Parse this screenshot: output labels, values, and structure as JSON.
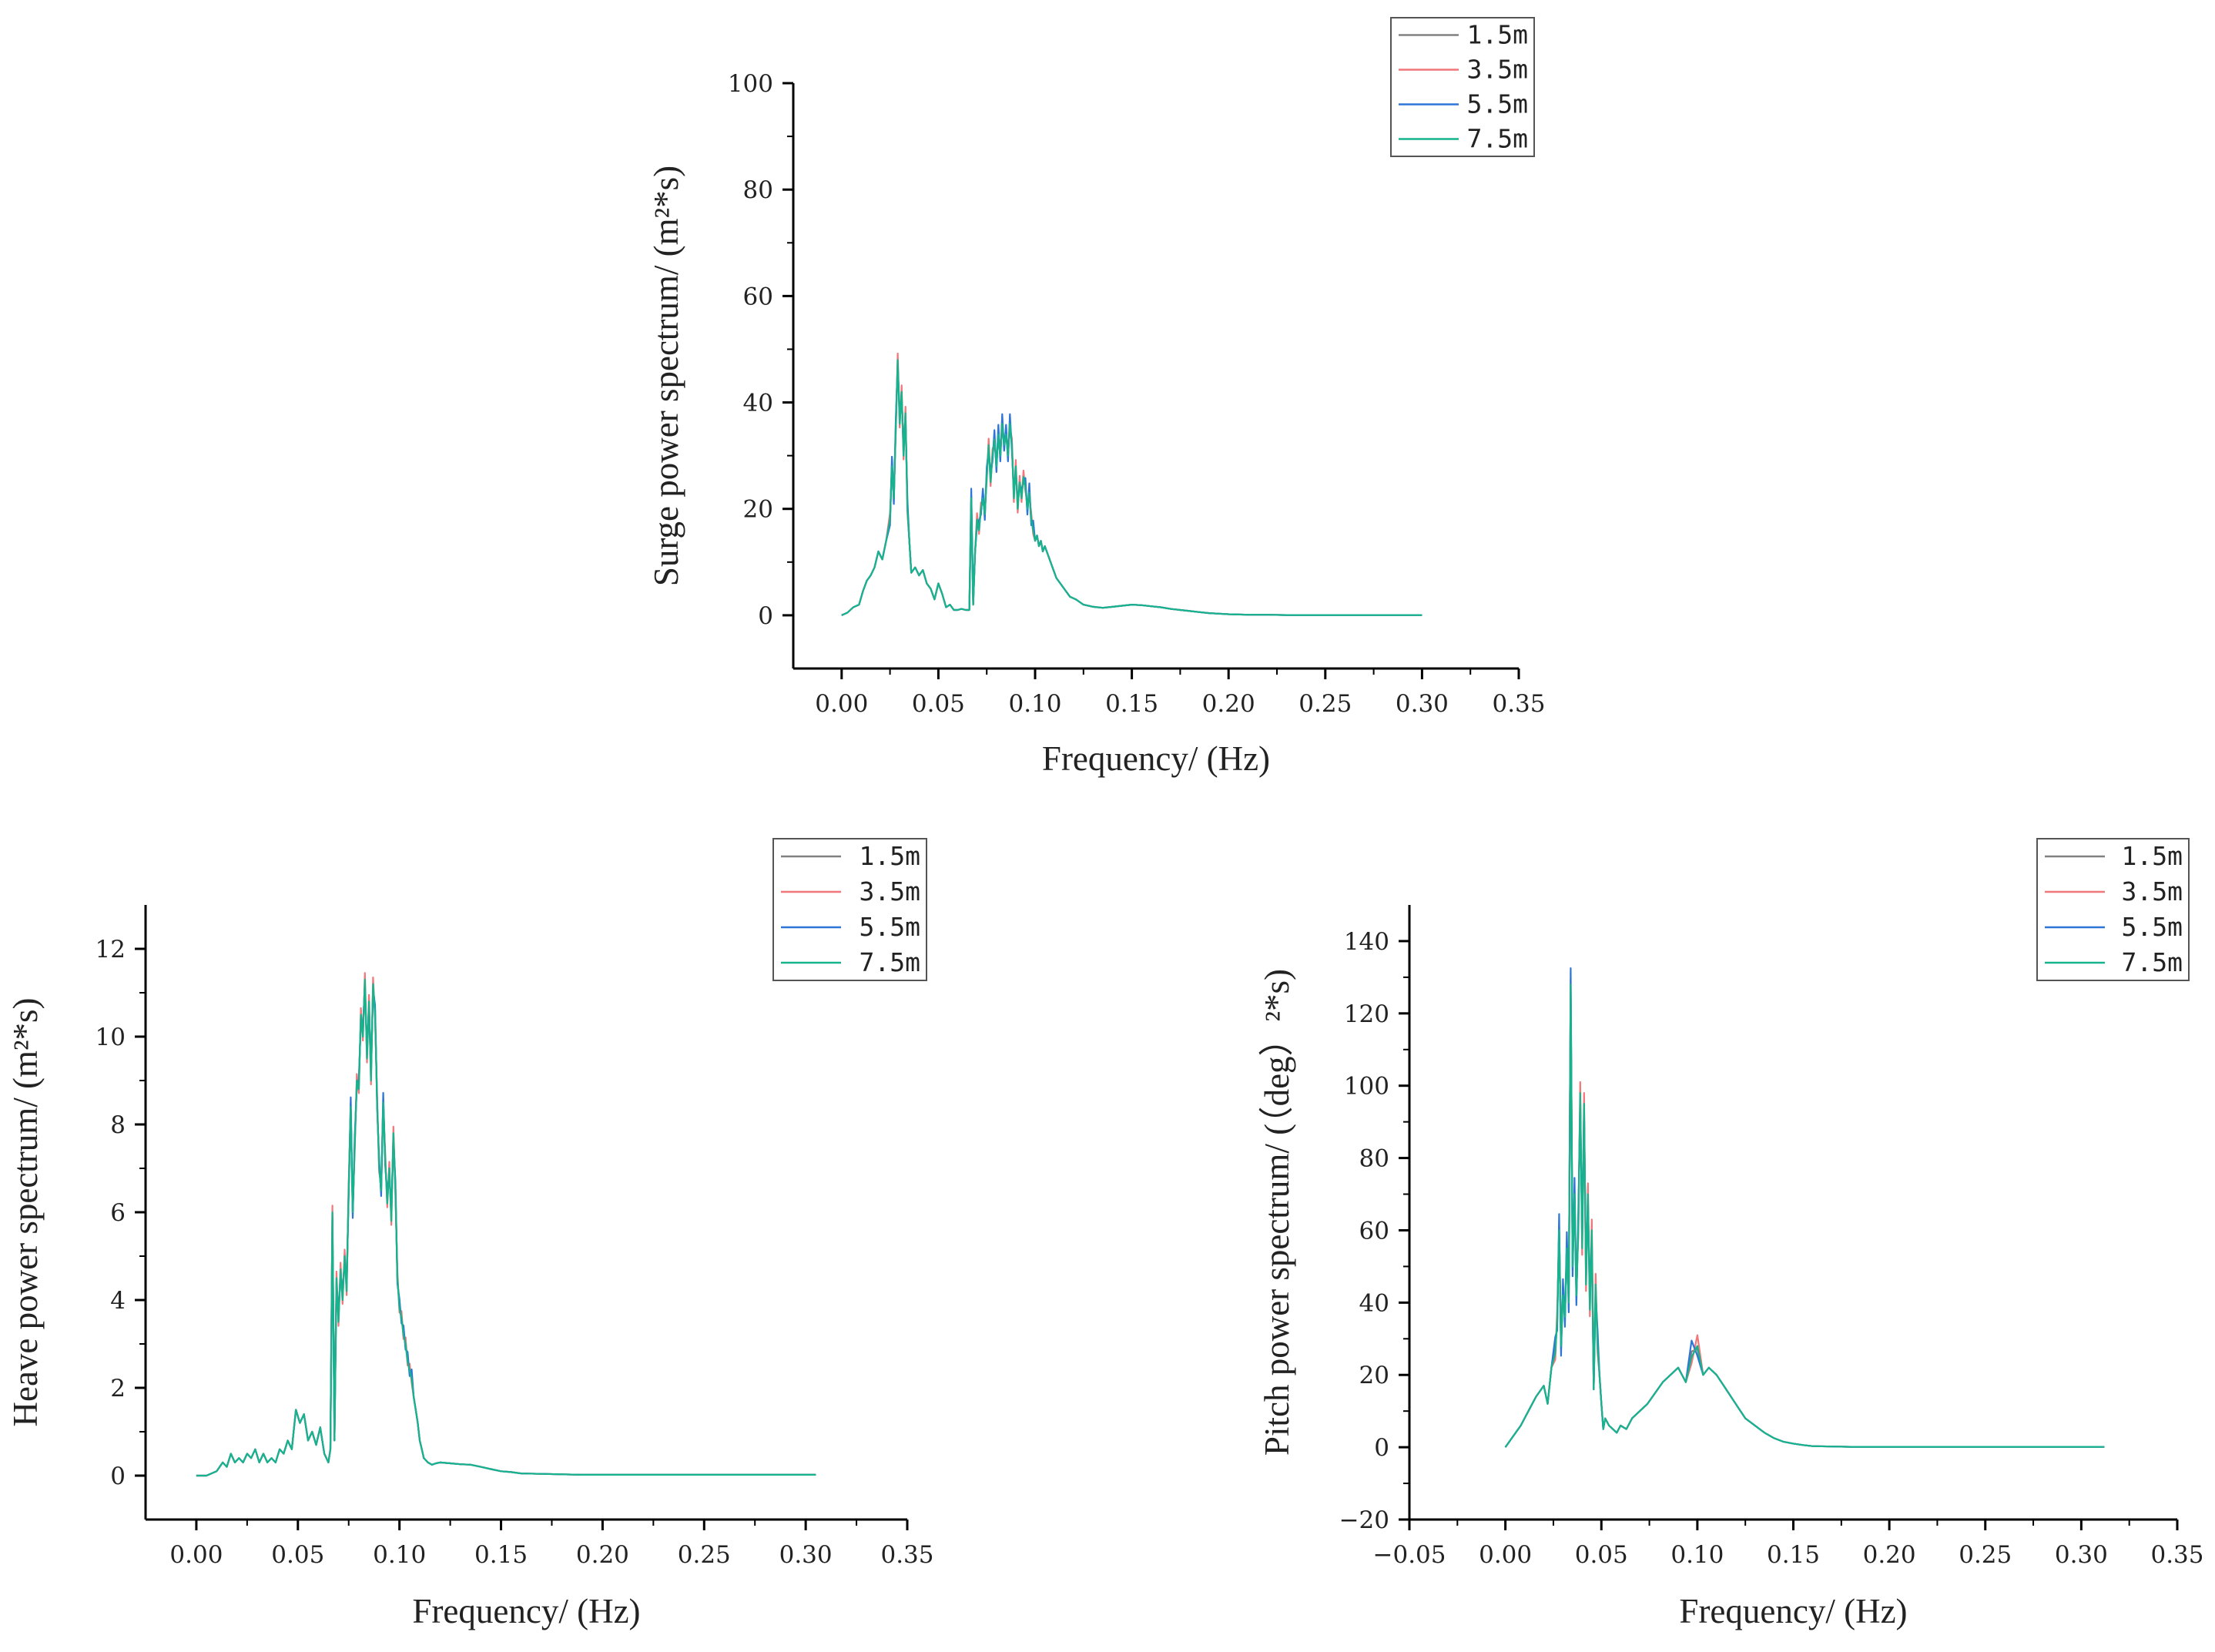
{
  "colors": {
    "axis": "#000000",
    "legend_border": "#555555"
  },
  "chart_data": [
    {
      "id": "surge",
      "type": "line",
      "title": "",
      "xlabel": "Frequency/ (Hz)",
      "ylabel": "Surge power spectrum/ (m²*s)",
      "xlim": [
        -0.025,
        0.35
      ],
      "ylim": [
        -10,
        100
      ],
      "xticks": [
        0.0,
        0.05,
        0.1,
        0.15,
        0.2,
        0.25,
        0.3,
        0.35
      ],
      "xtick_labels": [
        "0.00",
        "0.05",
        "0.10",
        "0.15",
        "0.20",
        "0.25",
        "0.30",
        "0.35"
      ],
      "yticks": [
        0,
        20,
        40,
        60,
        80,
        100
      ],
      "ytick_labels": [
        "0",
        "20",
        "40",
        "60",
        "80",
        "100"
      ],
      "legend": "top-right",
      "series": [
        {
          "name": "1.5m",
          "color": "#808080",
          "offset": 0.6
        },
        {
          "name": "3.5m",
          "color": "#f0777a",
          "offset": 1.2
        },
        {
          "name": "5.5m",
          "color": "#2e75d8",
          "offset": 1.8
        },
        {
          "name": "7.5m",
          "color": "#17b38c",
          "offset": 0
        }
      ],
      "x": [
        0.0,
        0.003,
        0.006,
        0.009,
        0.011,
        0.013,
        0.015,
        0.017,
        0.019,
        0.021,
        0.023,
        0.025,
        0.026,
        0.027,
        0.028,
        0.029,
        0.03,
        0.031,
        0.032,
        0.033,
        0.034,
        0.035,
        0.036,
        0.038,
        0.04,
        0.042,
        0.044,
        0.046,
        0.048,
        0.05,
        0.052,
        0.054,
        0.056,
        0.058,
        0.06,
        0.062,
        0.064,
        0.066,
        0.067,
        0.068,
        0.069,
        0.07,
        0.071,
        0.072,
        0.073,
        0.074,
        0.075,
        0.076,
        0.077,
        0.078,
        0.079,
        0.08,
        0.081,
        0.082,
        0.083,
        0.084,
        0.085,
        0.086,
        0.087,
        0.088,
        0.089,
        0.09,
        0.091,
        0.092,
        0.093,
        0.094,
        0.095,
        0.096,
        0.097,
        0.098,
        0.099,
        0.1,
        0.101,
        0.102,
        0.103,
        0.104,
        0.105,
        0.107,
        0.109,
        0.111,
        0.113,
        0.115,
        0.118,
        0.121,
        0.125,
        0.13,
        0.135,
        0.14,
        0.145,
        0.15,
        0.155,
        0.16,
        0.165,
        0.17,
        0.175,
        0.18,
        0.185,
        0.19,
        0.195,
        0.2,
        0.21,
        0.22,
        0.23,
        0.24,
        0.25,
        0.26,
        0.27,
        0.28,
        0.29,
        0.3
      ],
      "values": [
        0.0,
        0.5,
        1.5,
        2.0,
        4.5,
        6.5,
        7.5,
        9.0,
        12.0,
        10.5,
        14.0,
        18.0,
        28.0,
        22.0,
        35.0,
        48.0,
        36.0,
        42.0,
        30.0,
        38.0,
        20.0,
        14.0,
        8.0,
        9.0,
        7.5,
        8.5,
        6.0,
        5.0,
        3.0,
        6.0,
        4.0,
        1.5,
        2.0,
        1.0,
        1.0,
        1.2,
        1.0,
        1.0,
        22.0,
        2.0,
        12.0,
        18.0,
        16.0,
        20.0,
        22.0,
        19.0,
        26.0,
        32.0,
        25.0,
        30.0,
        33.0,
        28.0,
        34.0,
        30.0,
        36.0,
        32.0,
        34.0,
        30.0,
        36.0,
        32.0,
        22.0,
        28.0,
        20.0,
        25.0,
        22.0,
        26.0,
        24.0,
        20.0,
        23.0,
        18.0,
        16.0,
        14.0,
        15.0,
        13.0,
        14.0,
        12.0,
        13.0,
        11.0,
        9.0,
        7.0,
        6.0,
        5.0,
        3.5,
        3.0,
        2.0,
        1.6,
        1.4,
        1.6,
        1.8,
        2.0,
        1.9,
        1.7,
        1.5,
        1.2,
        1.0,
        0.8,
        0.6,
        0.4,
        0.3,
        0.2,
        0.1,
        0.1,
        0.05,
        0.05,
        0.05,
        0.05,
        0.05,
        0.05,
        0.05,
        0.05
      ]
    },
    {
      "id": "heave",
      "type": "line",
      "title": "",
      "xlabel": "Frequency/ (Hz)",
      "ylabel": "Heave power spectrum/ (m²*s)",
      "xlim": [
        -0.025,
        0.35
      ],
      "ylim": [
        -1,
        13
      ],
      "xticks": [
        0.0,
        0.05,
        0.1,
        0.15,
        0.2,
        0.25,
        0.3,
        0.35
      ],
      "xtick_labels": [
        "0.00",
        "0.05",
        "0.10",
        "0.15",
        "0.20",
        "0.25",
        "0.30",
        "0.35"
      ],
      "yticks": [
        0,
        2,
        4,
        6,
        8,
        10,
        12
      ],
      "ytick_labels": [
        "0",
        "2",
        "4",
        "6",
        "8",
        "10",
        "12"
      ],
      "legend": "top-right",
      "series": [
        {
          "name": "1.5m",
          "color": "#808080",
          "offset": 0.08
        },
        {
          "name": "3.5m",
          "color": "#f0777a",
          "offset": 0.15
        },
        {
          "name": "5.5m",
          "color": "#2e75d8",
          "offset": 0.22
        },
        {
          "name": "7.5m",
          "color": "#17b38c",
          "offset": 0
        }
      ],
      "x": [
        0.0,
        0.005,
        0.01,
        0.013,
        0.015,
        0.017,
        0.019,
        0.021,
        0.023,
        0.025,
        0.027,
        0.029,
        0.031,
        0.033,
        0.035,
        0.037,
        0.039,
        0.041,
        0.043,
        0.045,
        0.047,
        0.049,
        0.051,
        0.053,
        0.055,
        0.057,
        0.059,
        0.061,
        0.063,
        0.065,
        0.066,
        0.067,
        0.068,
        0.069,
        0.07,
        0.071,
        0.072,
        0.073,
        0.074,
        0.075,
        0.076,
        0.077,
        0.078,
        0.079,
        0.08,
        0.081,
        0.082,
        0.083,
        0.084,
        0.085,
        0.086,
        0.087,
        0.088,
        0.089,
        0.09,
        0.091,
        0.092,
        0.093,
        0.094,
        0.095,
        0.096,
        0.097,
        0.098,
        0.099,
        0.1,
        0.101,
        0.102,
        0.103,
        0.104,
        0.105,
        0.106,
        0.107,
        0.108,
        0.109,
        0.11,
        0.111,
        0.112,
        0.114,
        0.116,
        0.118,
        0.12,
        0.125,
        0.13,
        0.135,
        0.14,
        0.145,
        0.15,
        0.155,
        0.16,
        0.17,
        0.18,
        0.19,
        0.2,
        0.22,
        0.24,
        0.26,
        0.28,
        0.3,
        0.305
      ],
      "values": [
        0.0,
        0.0,
        0.1,
        0.3,
        0.2,
        0.5,
        0.3,
        0.4,
        0.3,
        0.5,
        0.4,
        0.6,
        0.3,
        0.5,
        0.3,
        0.4,
        0.3,
        0.6,
        0.5,
        0.8,
        0.6,
        1.5,
        1.2,
        1.4,
        0.8,
        1.0,
        0.7,
        1.1,
        0.5,
        0.3,
        0.6,
        6.0,
        0.8,
        4.5,
        3.5,
        4.7,
        4.0,
        5.0,
        4.2,
        6.5,
        8.4,
        6.0,
        7.5,
        9.0,
        8.8,
        10.5,
        10.0,
        11.3,
        9.5,
        10.8,
        9.0,
        11.2,
        10.5,
        8.5,
        7.0,
        6.5,
        8.5,
        7.2,
        6.2,
        7.0,
        5.8,
        7.8,
        6.5,
        4.5,
        3.8,
        3.6,
        3.2,
        3.0,
        2.6,
        2.4,
        2.2,
        1.8,
        1.5,
        1.2,
        0.8,
        0.6,
        0.4,
        0.3,
        0.25,
        0.28,
        0.3,
        0.28,
        0.26,
        0.25,
        0.2,
        0.15,
        0.1,
        0.08,
        0.05,
        0.04,
        0.03,
        0.02,
        0.02,
        0.02,
        0.02,
        0.02,
        0.02,
        0.02,
        0.02
      ]
    },
    {
      "id": "pitch",
      "type": "line",
      "title": "",
      "xlabel": "Frequency/ (Hz)",
      "ylabel": "Pitch power spectrum/ (（deg）²*s)",
      "xlim": [
        -0.05,
        0.35
      ],
      "ylim": [
        -20,
        150
      ],
      "xticks": [
        -0.05,
        0.0,
        0.05,
        0.1,
        0.15,
        0.2,
        0.25,
        0.3,
        0.35
      ],
      "xtick_labels": [
        "−0.05",
        "0.00",
        "0.05",
        "0.10",
        "0.15",
        "0.20",
        "0.25",
        "0.30",
        "0.35"
      ],
      "yticks": [
        -20,
        0,
        20,
        40,
        60,
        80,
        100,
        120,
        140
      ],
      "ytick_labels": [
        "−20",
        "0",
        "20",
        "40",
        "60",
        "80",
        "100",
        "120",
        "140"
      ],
      "legend": "top-right",
      "series": [
        {
          "name": "1.5m",
          "color": "#808080",
          "offset": 1.5
        },
        {
          "name": "3.5m",
          "color": "#f0777a",
          "offset": 3.0
        },
        {
          "name": "5.5m",
          "color": "#2e75d8",
          "offset": 4.5
        },
        {
          "name": "7.5m",
          "color": "#17b38c",
          "offset": 0
        }
      ],
      "x": [
        0.0,
        0.004,
        0.008,
        0.012,
        0.016,
        0.02,
        0.022,
        0.024,
        0.026,
        0.027,
        0.028,
        0.029,
        0.03,
        0.031,
        0.032,
        0.033,
        0.034,
        0.035,
        0.036,
        0.037,
        0.038,
        0.039,
        0.04,
        0.041,
        0.042,
        0.043,
        0.044,
        0.045,
        0.046,
        0.047,
        0.048,
        0.049,
        0.05,
        0.051,
        0.052,
        0.054,
        0.056,
        0.058,
        0.06,
        0.063,
        0.066,
        0.07,
        0.074,
        0.078,
        0.082,
        0.086,
        0.09,
        0.094,
        0.097,
        0.1,
        0.103,
        0.106,
        0.11,
        0.115,
        0.12,
        0.125,
        0.13,
        0.135,
        0.14,
        0.145,
        0.15,
        0.155,
        0.16,
        0.17,
        0.18,
        0.2,
        0.22,
        0.24,
        0.26,
        0.28,
        0.3,
        0.312
      ],
      "values": [
        0.0,
        3.0,
        6.0,
        10.0,
        14.0,
        17.0,
        12.0,
        22.0,
        26.0,
        35.0,
        60.0,
        28.0,
        42.0,
        36.0,
        55.0,
        40.0,
        128.0,
        50.0,
        70.0,
        42.0,
        60.0,
        98.0,
        55.0,
        95.0,
        45.0,
        70.0,
        38.0,
        60.0,
        16.0,
        45.0,
        28.0,
        20.0,
        12.0,
        5.0,
        8.0,
        6.0,
        5.0,
        4.0,
        6.0,
        5.0,
        8.0,
        10.0,
        12.0,
        15.0,
        18.0,
        20.0,
        22.0,
        18.0,
        25.0,
        28.0,
        20.0,
        22.0,
        20.0,
        16.0,
        12.0,
        8.0,
        6.0,
        4.0,
        2.5,
        1.5,
        1.0,
        0.6,
        0.3,
        0.2,
        0.1,
        0.1,
        0.1,
        0.1,
        0.1,
        0.1,
        0.1,
        0.1
      ]
    }
  ]
}
